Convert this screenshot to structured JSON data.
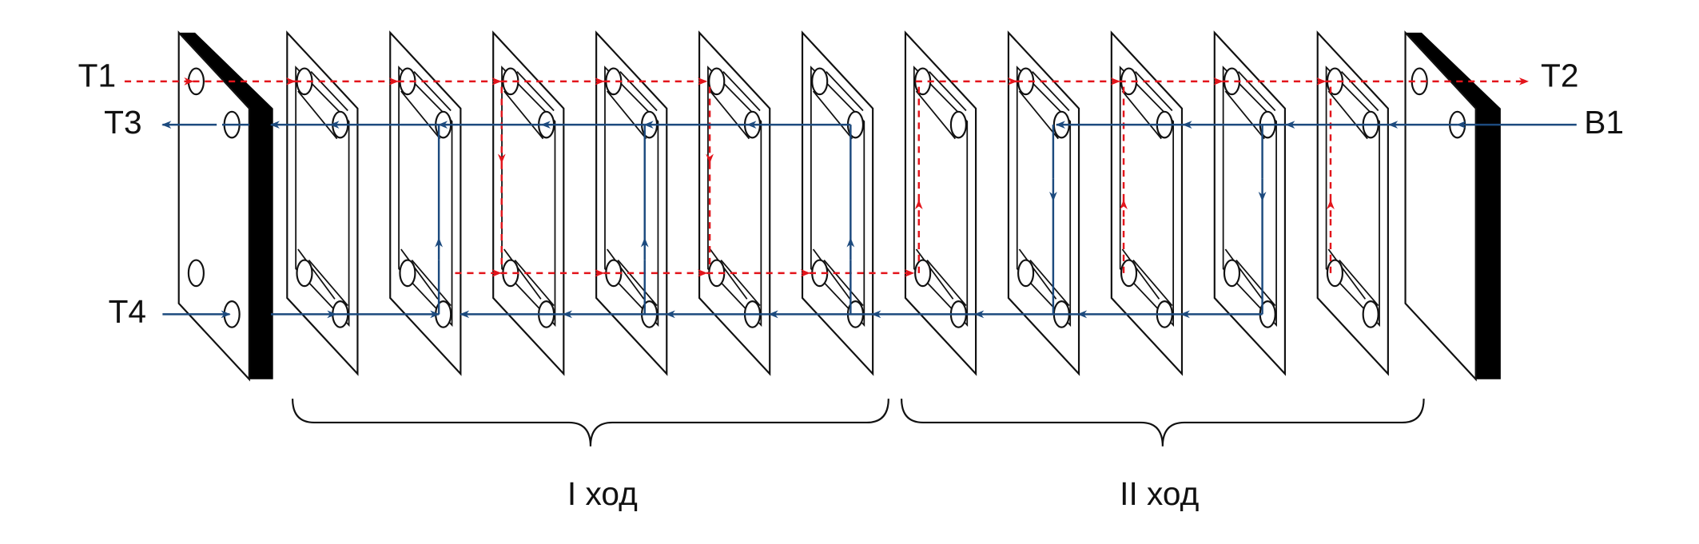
{
  "labels": {
    "t1": "T1",
    "t3": "T3",
    "t4": "T4",
    "t2": "T2",
    "b1": "B1"
  },
  "passes": [
    "I ход",
    "II ход"
  ]
}
